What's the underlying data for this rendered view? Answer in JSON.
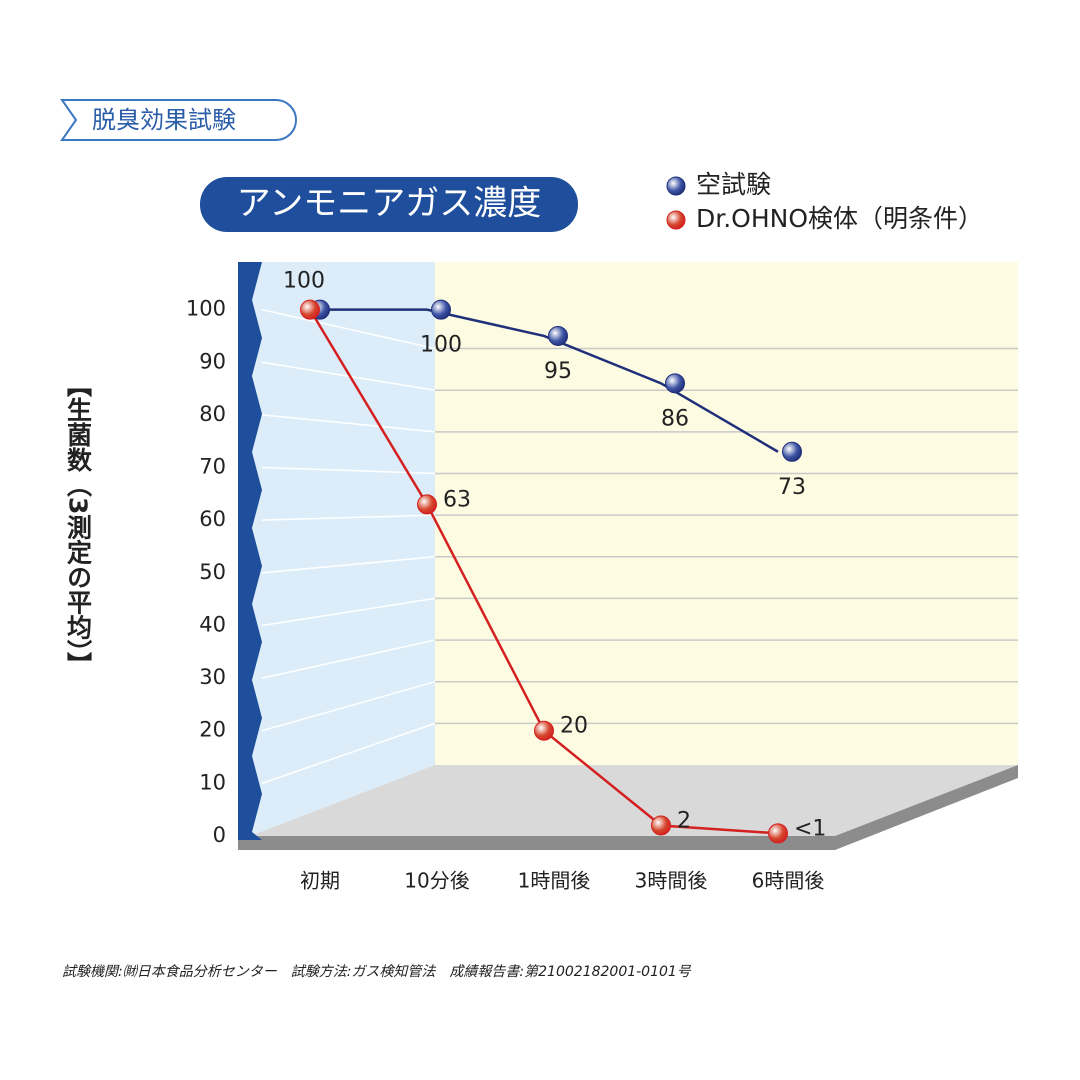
{
  "chart_data": {
    "type": "line",
    "header": "脱臭効果試験",
    "title": "アンモニアガス濃度",
    "y_label": "【生菌数（3測定の平均）】",
    "categories": [
      "初期",
      "10分後",
      "1時間後",
      "3時間後",
      "6時間後"
    ],
    "series": [
      {
        "name": "空試験",
        "color": "#3f55a5",
        "line_color": "#1f2f7a",
        "values": [
          100,
          100,
          95,
          86,
          73
        ],
        "value_labels": [
          null,
          "100",
          "95",
          "86",
          "73"
        ]
      },
      {
        "name": "Dr.OHNO検体（明条件）",
        "color": "#d5472e",
        "line_color": "#d42020",
        "values": [
          100,
          63,
          20,
          2,
          0.5
        ],
        "value_labels": [
          "100",
          "63",
          "20",
          "2",
          "<1"
        ]
      }
    ],
    "ylim": [
      0,
      110
    ],
    "yticks": [
      0,
      10,
      20,
      30,
      40,
      50,
      60,
      70,
      80,
      90,
      100
    ],
    "grid": true,
    "note": "試験機関:㈶日本食品分析センター　試験方法:ガス検知管法　成績報告書:第21002182001-0101号"
  }
}
